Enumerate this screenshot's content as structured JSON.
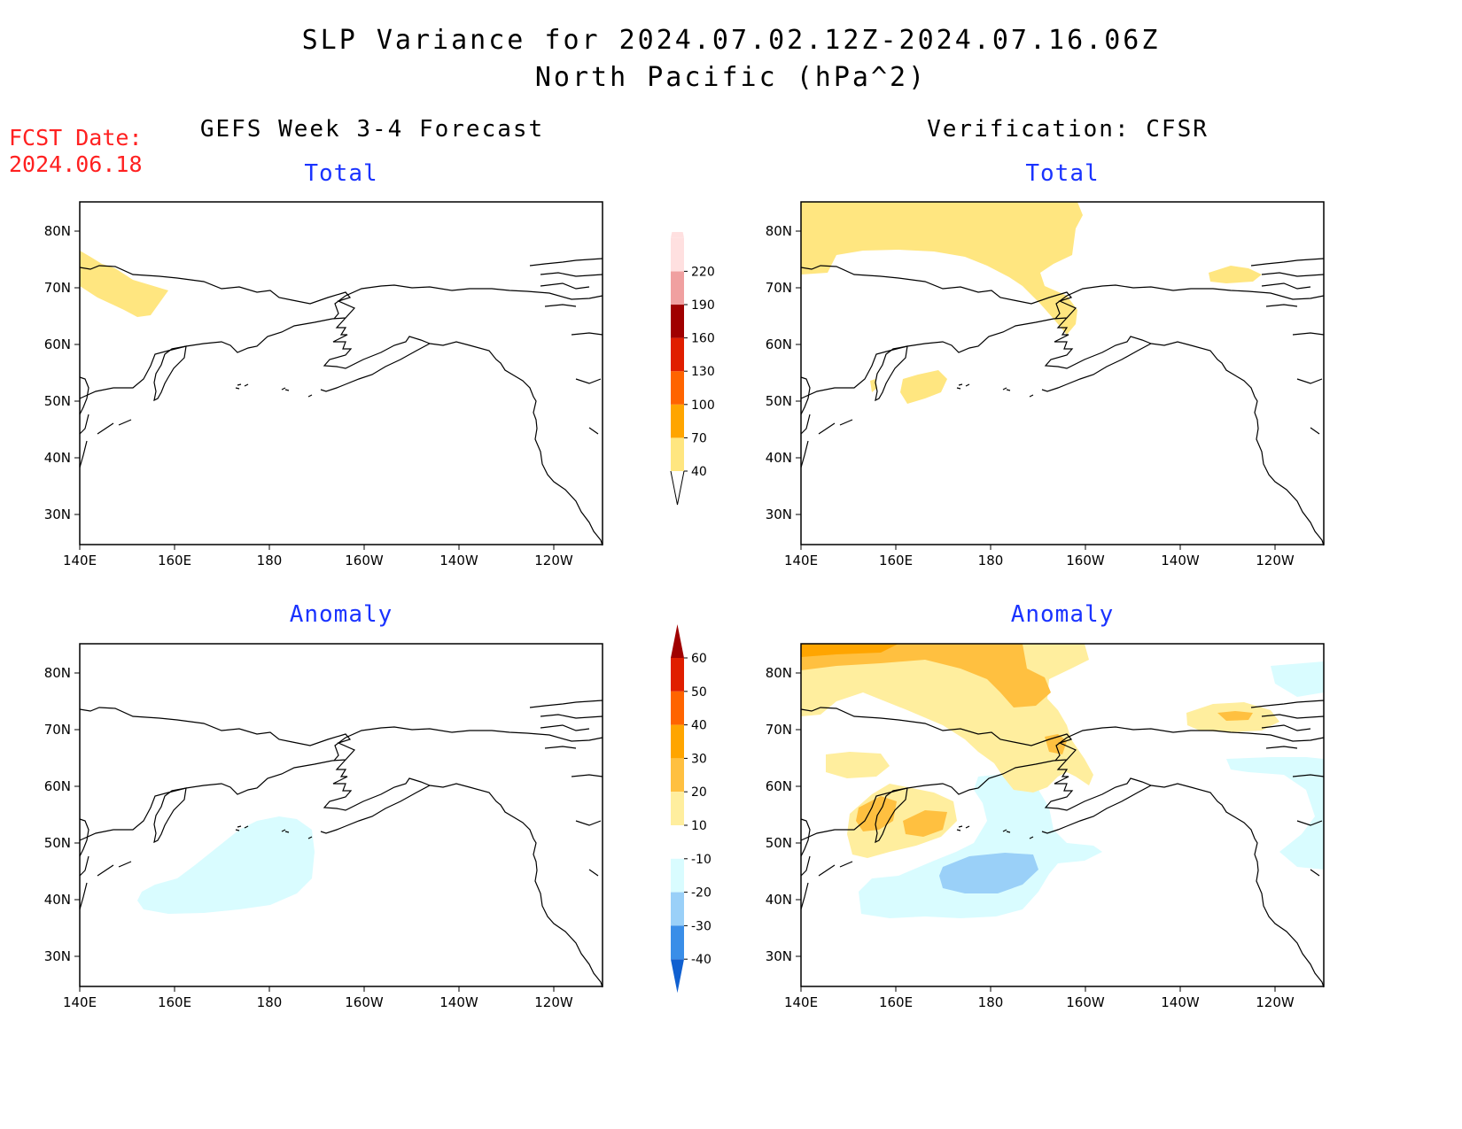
{
  "header": {
    "title_line1": "SLP Variance for 2024.07.02.12Z-2024.07.16.06Z",
    "title_line2": "North Pacific (hPa^2)",
    "fcst_label": "FCST Date:",
    "fcst_date": "2024.06.18",
    "left_column": "GEFS Week 3-4 Forecast",
    "right_column": "Verification: CFSR"
  },
  "panels": {
    "forecast_total": {
      "title": "Total"
    },
    "forecast_anomaly": {
      "title": "Anomaly"
    },
    "verif_total": {
      "title": "Total"
    },
    "verif_anomaly": {
      "title": "Anomaly"
    }
  },
  "axes": {
    "lon_labels": [
      "140E",
      "160E",
      "180",
      "160W",
      "140W",
      "120W"
    ],
    "lat_labels": [
      "80N",
      "70N",
      "60N",
      "50N",
      "40N",
      "30N"
    ]
  },
  "colorbar_total": {
    "levels": [
      "40",
      "70",
      "100",
      "130",
      "160",
      "190",
      "220"
    ],
    "colors": [
      "#ffe680",
      "#ffa500",
      "#ff6400",
      "#e01e00",
      "#a00000",
      "#f0a0a0",
      "#ffe0e0"
    ]
  },
  "colorbar_anomaly": {
    "levels": [
      "60",
      "50",
      "40",
      "30",
      "20",
      "10",
      "-10",
      "-20",
      "-30",
      "-40"
    ],
    "colors": [
      "#a00000",
      "#e01e00",
      "#ff6400",
      "#ffa500",
      "#ffc040",
      "#ffee9e",
      "#ffffff",
      "#d9fcff",
      "#9ad0f8",
      "#3a8ee8",
      "#1060d0"
    ]
  }
}
